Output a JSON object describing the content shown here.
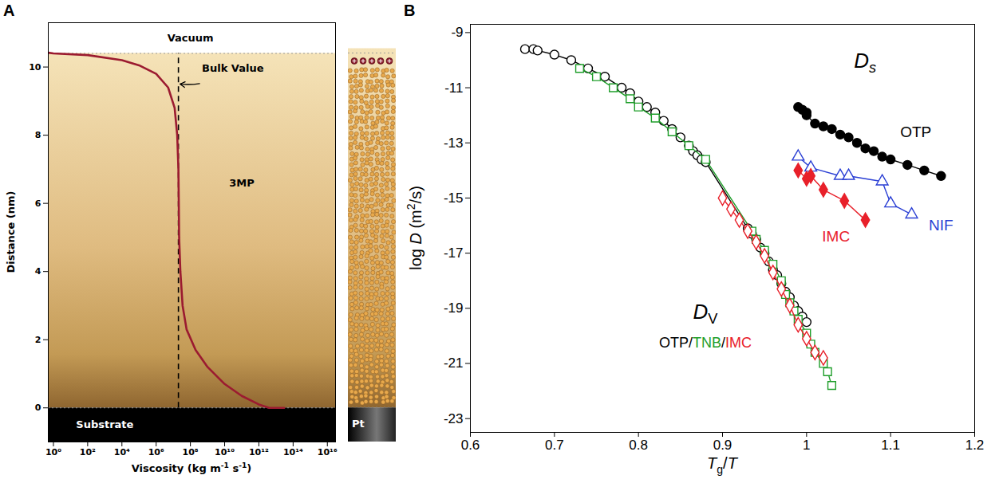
{
  "chart_data": [
    {
      "panel": "A",
      "type": "line",
      "log": "x",
      "xlabel": [
        {
          "text": "Viscosity (kg m"
        },
        {
          "text": "-1",
          "style": "sup"
        },
        {
          "text": " s"
        },
        {
          "text": "-1",
          "style": "sup"
        },
        {
          "text": ")"
        }
      ],
      "ylabel": [
        {
          "text": "Distance (nm)"
        }
      ],
      "xlim": [
        0.5,
        30000000000000000
      ],
      "xticks": [
        {
          "value": 1,
          "label": "10⁰"
        },
        {
          "value": 100,
          "label": "10²"
        },
        {
          "value": 10000,
          "label": "10⁴"
        },
        {
          "value": 1000000,
          "label": "10⁶"
        },
        {
          "value": 100000000,
          "label": "10⁸"
        },
        {
          "value": 10000000000,
          "label": "10¹⁰"
        },
        {
          "value": 1000000000000,
          "label": "10¹²"
        },
        {
          "value": 100000000000000,
          "label": "10¹⁴"
        },
        {
          "value": 10000000000000000,
          "label": "10¹⁶"
        }
      ],
      "ylim": [
        -1,
        11.3
      ],
      "yticks": [
        0,
        2,
        4,
        6,
        8,
        10
      ],
      "series": [
        {
          "name": "3MP",
          "color": "#9b1b30",
          "line_style": "solid",
          "x": [
            0.5,
            1,
            100,
            10000,
            100000,
            1000000,
            5000000,
            12000000,
            17000000,
            20000000,
            22000000,
            26000000,
            35000000,
            60000000,
            200000000,
            1000000000,
            10000000000,
            100000000000,
            1000000000000,
            4000000000000,
            30000000000000
          ],
          "values": [
            10.42,
            10.4,
            10.35,
            10.2,
            10.05,
            9.8,
            9.4,
            8.8,
            8.0,
            7.0,
            5.0,
            4.0,
            3.0,
            2.3,
            1.7,
            1.2,
            0.7,
            0.35,
            0.1,
            0,
            0
          ]
        }
      ],
      "bulk_value": 20000000,
      "interfaces": [
        0,
        10.4
      ],
      "annotations": [
        {
          "text": "Vacuum",
          "x": 100000000,
          "y": 10.85,
          "color": "#000000"
        },
        {
          "text": "3MP",
          "x": 100000000000,
          "y": 6.6,
          "color": "#000000"
        },
        {
          "text": "Substrate",
          "x": 1000,
          "y": -0.5,
          "color": "#ffffff"
        },
        {
          "text": "Bulk Value",
          "x": 30000000000,
          "y": 9.95,
          "color": "#000000",
          "arrow_to": [
            25000000,
            9.5
          ]
        }
      ],
      "inset_label": "Pt"
    },
    {
      "panel": "B",
      "type": "scatter",
      "xlabel": [
        {
          "text": "T",
          "style": "italic"
        },
        {
          "text": "g",
          "style": "sub"
        },
        {
          "text": "/"
        },
        {
          "text": "T",
          "style": "italic"
        }
      ],
      "ylabel": [
        {
          "text": "log "
        },
        {
          "text": "D",
          "style": "italic"
        },
        {
          "text": " (m"
        },
        {
          "text": "2",
          "style": "sup"
        },
        {
          "text": "/s)"
        }
      ],
      "xlim": [
        0.6,
        1.2
      ],
      "xticks": [
        0.6,
        0.7,
        0.8,
        0.9,
        1,
        1.1,
        1.2
      ],
      "ylim": [
        -23.5,
        -8.7
      ],
      "yticks": [
        -23,
        -21,
        -19,
        -17,
        -15,
        -13,
        -11,
        -9
      ],
      "series": [
        {
          "name": "OTP",
          "color": "#000000",
          "marker": "open-circle",
          "line_style": "solid",
          "x": [
            0.665,
            0.675,
            0.68,
            0.7,
            0.72,
            0.74,
            0.76,
            0.78,
            0.79,
            0.8,
            0.81,
            0.82,
            0.83,
            0.84,
            0.85,
            0.86,
            0.865,
            0.87,
            0.875,
            0.88,
            0.93,
            0.935,
            0.94,
            0.945,
            0.95,
            0.955,
            0.96,
            0.965,
            0.97,
            0.975,
            0.98,
            0.985,
            0.99,
            0.995,
            1.0
          ],
          "values": [
            -9.6,
            -9.6,
            -9.65,
            -9.8,
            -10.0,
            -10.3,
            -10.6,
            -11.0,
            -11.2,
            -11.5,
            -11.7,
            -11.9,
            -12.2,
            -12.5,
            -12.8,
            -13.1,
            -13.3,
            -13.45,
            -13.6,
            -13.7,
            -16.1,
            -16.3,
            -16.5,
            -16.8,
            -17.0,
            -17.3,
            -17.6,
            -17.8,
            -18.1,
            -18.4,
            -18.6,
            -18.9,
            -19.1,
            -19.3,
            -19.5
          ]
        },
        {
          "name": "TNB",
          "color": "#1f9e2a",
          "marker": "open-square",
          "line_style": "solid",
          "x": [
            0.73,
            0.75,
            0.77,
            0.79,
            0.8,
            0.82,
            0.84,
            0.86,
            0.88,
            0.935,
            0.94,
            0.95,
            0.96,
            0.97,
            0.975,
            0.98,
            0.985,
            0.99,
            1.0,
            1.005,
            1.01,
            1.02,
            1.025,
            1.03
          ],
          "values": [
            -10.3,
            -10.6,
            -11.0,
            -11.4,
            -11.7,
            -12.1,
            -12.6,
            -13.1,
            -13.6,
            -16.2,
            -16.5,
            -16.9,
            -17.4,
            -18.0,
            -18.5,
            -18.8,
            -19.1,
            -19.4,
            -19.9,
            -20.3,
            -20.6,
            -21.0,
            -21.3,
            -21.8
          ]
        },
        {
          "name": "IMC",
          "color": "#e8202a",
          "marker": "open-diamond",
          "line_style": "solid",
          "x": [
            0.9,
            0.91,
            0.92,
            0.93,
            0.94,
            0.95,
            0.96,
            0.97,
            0.98,
            0.99,
            1.0,
            1.01,
            1.02
          ],
          "values": [
            -15.0,
            -15.4,
            -15.8,
            -16.2,
            -16.6,
            -17.1,
            -17.7,
            -18.3,
            -18.9,
            -19.6,
            -20.1,
            -20.6,
            -20.8
          ]
        },
        {
          "name": "OTP",
          "color": "#000000",
          "marker": "filled-circle",
          "line_style": "solid",
          "x": [
            0.99,
            0.995,
            1.0,
            1.0,
            1.01,
            1.02,
            1.03,
            1.04,
            1.05,
            1.06,
            1.07,
            1.08,
            1.09,
            1.1,
            1.12,
            1.14,
            1.16
          ],
          "values": [
            -11.7,
            -11.8,
            -11.9,
            -12.0,
            -12.3,
            -12.4,
            -12.5,
            -12.7,
            -12.8,
            -13.0,
            -13.2,
            -13.3,
            -13.5,
            -13.6,
            -13.8,
            -14.0,
            -14.2
          ]
        },
        {
          "name": "NIF",
          "color": "#2a3fd4",
          "marker": "open-triangle",
          "line_style": "solid",
          "x": [
            0.99,
            1.005,
            1.04,
            1.05,
            1.09,
            1.1,
            1.125
          ],
          "values": [
            -13.5,
            -13.9,
            -14.2,
            -14.2,
            -14.4,
            -15.2,
            -15.6
          ]
        },
        {
          "name": "IMC",
          "color": "#e8202a",
          "marker": "filled-diamond",
          "line_style": "solid",
          "x": [
            0.99,
            1.0,
            1.005,
            1.02,
            1.045,
            1.07
          ],
          "values": [
            -14.0,
            -14.3,
            -14.2,
            -14.7,
            -15.1,
            -15.8
          ]
        }
      ],
      "annotations": [
        {
          "text": "OTP",
          "x": 1.13,
          "y": -12.6,
          "color": "#000000"
        },
        {
          "text": "NIF",
          "x": 1.16,
          "y": -16.0,
          "color": "#2a3fd4"
        },
        {
          "text": "IMC",
          "x": 1.035,
          "y": -16.4,
          "color": "#e8202a"
        },
        {
          "parts": [
            {
              "text": "D",
              "style": "italic"
            },
            {
              "text": "s",
              "style": "italic sub"
            }
          ],
          "x": 1.07,
          "y": -10.1
        },
        {
          "parts": [
            {
              "text": "D",
              "style": "italic"
            },
            {
              "text": "V",
              "style": "sub"
            }
          ],
          "x": 0.88,
          "y": -19.2
        },
        {
          "parts": [
            {
              "text": "OTP",
              "color": "#000000"
            },
            {
              "text": "/",
              "color": "#000000"
            },
            {
              "text": "TNB",
              "color": "#1f9e2a"
            },
            {
              "text": "/",
              "color": "#000000"
            },
            {
              "text": "IMC",
              "color": "#e8202a"
            }
          ],
          "x": 0.88,
          "y": -20.3
        }
      ]
    }
  ]
}
